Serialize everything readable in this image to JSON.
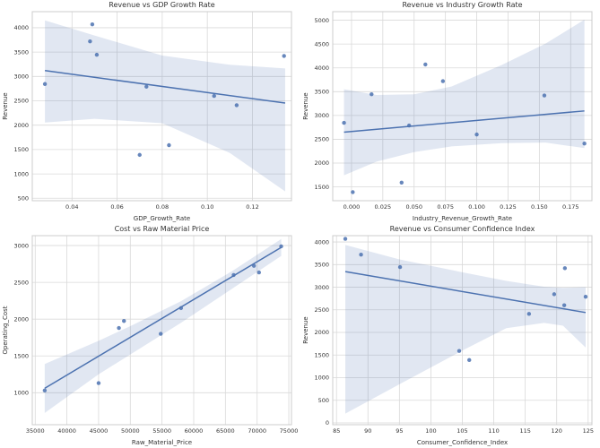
{
  "figure": {
    "kind": "seaborn-regplot-grid",
    "rows": 2,
    "cols": 2
  },
  "style": {
    "point_color": "#4c72b0",
    "point_opacity": 0.85,
    "line_color": "#4c72b0",
    "band_color": "#4c72b0",
    "band_opacity": 0.17,
    "grid_color": "#d9d9d9",
    "spine_color": "#cccccc",
    "text_color": "#333333",
    "plot_bg": "#ffffff"
  },
  "chart_data": [
    {
      "type": "scatter",
      "title": "Revenue vs GDP Growth Rate",
      "xlabel": "GDP_Growth_Rate",
      "ylabel": "Revenue",
      "legend": "none",
      "grid": true,
      "xlim": [
        0.0224,
        0.1373
      ],
      "ylim": [
        450,
        4330
      ],
      "xticks": [
        0.04,
        0.06,
        0.08,
        0.1,
        0.12
      ],
      "xtick_labels": [
        "0.04",
        "0.06",
        "0.08",
        "0.10",
        "0.12"
      ],
      "yticks": [
        500,
        1000,
        1500,
        2000,
        2500,
        3000,
        3500,
        4000
      ],
      "ytick_labels": [
        "500",
        "1000",
        "1500",
        "2000",
        "2500",
        "3000",
        "3500",
        "4000"
      ],
      "points": [
        [
          0.028,
          2845
        ],
        [
          0.048,
          3720
        ],
        [
          0.049,
          4070
        ],
        [
          0.051,
          3445
        ],
        [
          0.07,
          1390
        ],
        [
          0.073,
          2790
        ],
        [
          0.083,
          1590
        ],
        [
          0.103,
          2600
        ],
        [
          0.113,
          2410
        ],
        [
          0.134,
          3420
        ]
      ],
      "regression": {
        "x": [
          0.028,
          0.1345
        ],
        "y": [
          3120,
          2455
        ]
      },
      "band": {
        "x": [
          0.028,
          0.05,
          0.08,
          0.11,
          0.1345
        ],
        "upper": [
          4150,
          3840,
          3430,
          3240,
          3165
        ],
        "lower": [
          2055,
          2130,
          2040,
          1430,
          640
        ]
      }
    },
    {
      "type": "scatter",
      "title": "Revenue vs Industry Growth Rate",
      "xlabel": "Industry_Revenue_Growth_Rate",
      "ylabel": "Revenue",
      "legend": "none",
      "grid": true,
      "xlim": [
        -0.015,
        0.192
      ],
      "ylim": [
        1210,
        5180
      ],
      "xticks": [
        0.0,
        0.025,
        0.05,
        0.075,
        0.1,
        0.125,
        0.15,
        0.175
      ],
      "xtick_labels": [
        "0.000",
        "0.025",
        "0.050",
        "0.075",
        "0.100",
        "0.125",
        "0.150",
        "0.175"
      ],
      "yticks": [
        1500,
        2000,
        2500,
        3000,
        3500,
        4000,
        4500,
        5000
      ],
      "ytick_labels": [
        "1500",
        "2000",
        "2500",
        "3000",
        "3500",
        "4000",
        "4500",
        "5000"
      ],
      "points": [
        [
          -0.006,
          2845
        ],
        [
          0.001,
          1390
        ],
        [
          0.016,
          3445
        ],
        [
          0.04,
          1590
        ],
        [
          0.046,
          2790
        ],
        [
          0.059,
          4070
        ],
        [
          0.073,
          3720
        ],
        [
          0.1,
          2600
        ],
        [
          0.154,
          3420
        ],
        [
          0.186,
          2410
        ]
      ],
      "regression": {
        "x": [
          -0.006,
          0.186
        ],
        "y": [
          2650,
          3095
        ]
      },
      "band": {
        "x": [
          -0.006,
          0.02,
          0.05,
          0.08,
          0.12,
          0.155,
          0.186
        ],
        "upper": [
          3550,
          3430,
          3445,
          3610,
          4060,
          4510,
          5010
        ],
        "lower": [
          1745,
          2030,
          2230,
          2350,
          2420,
          2430,
          2315
        ]
      }
    },
    {
      "type": "scatter",
      "title": "Cost vs Raw Material Price",
      "xlabel": "Raw_Material_Price",
      "ylabel": "Operating_Cost",
      "legend": "none",
      "grid": true,
      "xlim": [
        34540,
        75420
      ],
      "ylim": [
        565,
        3135
      ],
      "xticks": [
        35000,
        40000,
        45000,
        50000,
        55000,
        60000,
        65000,
        70000,
        75000
      ],
      "xtick_labels": [
        "35000",
        "40000",
        "45000",
        "50000",
        "55000",
        "60000",
        "65000",
        "70000",
        "75000"
      ],
      "yticks": [
        1000,
        1500,
        2000,
        2500,
        3000
      ],
      "ytick_labels": [
        "1000",
        "1500",
        "2000",
        "2500",
        "3000"
      ],
      "points": [
        [
          36500,
          1030
        ],
        [
          45000,
          1130
        ],
        [
          48200,
          1880
        ],
        [
          49000,
          1975
        ],
        [
          54800,
          1800
        ],
        [
          58000,
          2150
        ],
        [
          66300,
          2600
        ],
        [
          69500,
          2725
        ],
        [
          70300,
          2635
        ],
        [
          73800,
          2990
        ]
      ],
      "regression": {
        "x": [
          36500,
          73800
        ],
        "y": [
          1060,
          2975
        ]
      },
      "band": {
        "x": [
          36500,
          45000,
          50000,
          58000,
          66000,
          73800
        ],
        "upper": [
          1390,
          1705,
          1905,
          2245,
          2650,
          3090
        ],
        "lower": [
          725,
          1250,
          1520,
          1950,
          2410,
          2860
        ]
      }
    },
    {
      "type": "scatter",
      "title": "Revenue vs Consumer Confidence Index",
      "xlabel": "Consumer_Confidence_Index",
      "ylabel": "Revenue",
      "legend": "none",
      "grid": true,
      "xlim": [
        84.4,
        125.6
      ],
      "ylim": [
        -40,
        4140
      ],
      "xticks": [
        85,
        90,
        95,
        100,
        105,
        110,
        115,
        120,
        125
      ],
      "xtick_labels": [
        "85",
        "90",
        "95",
        "100",
        "105",
        "110",
        "115",
        "120",
        "125"
      ],
      "yticks": [
        0,
        500,
        1000,
        1500,
        2000,
        2500,
        3000,
        3500,
        4000
      ],
      "ytick_labels": [
        "0",
        "500",
        "1000",
        "1500",
        "2000",
        "2500",
        "3000",
        "3500",
        "4000"
      ],
      "points": [
        [
          86.4,
          4070
        ],
        [
          88.9,
          3720
        ],
        [
          95.1,
          3445
        ],
        [
          104.5,
          1590
        ],
        [
          106.1,
          1390
        ],
        [
          115.6,
          2410
        ],
        [
          119.6,
          2845
        ],
        [
          121.2,
          2600
        ],
        [
          121.3,
          3420
        ],
        [
          124.6,
          2790
        ]
      ],
      "regression": {
        "x": [
          86.4,
          124.6
        ],
        "y": [
          3345,
          2440
        ]
      },
      "band": {
        "x": [
          86.4,
          95,
          105,
          112,
          118,
          121,
          124.6
        ],
        "upper": [
          3935,
          3615,
          3330,
          3140,
          3010,
          2985,
          3000
        ],
        "lower": [
          205,
          855,
          1600,
          2095,
          2210,
          2150,
          1665
        ]
      }
    }
  ]
}
